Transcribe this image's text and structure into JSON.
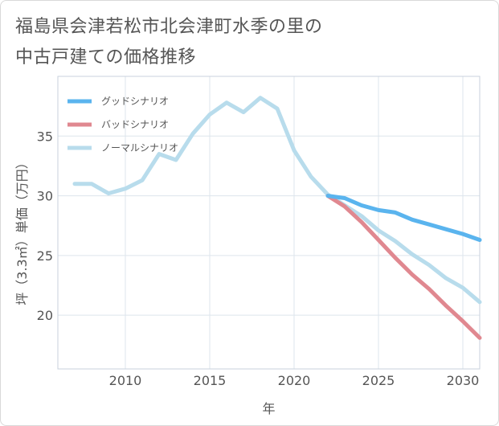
{
  "title_line1": "福島県会津若松市北会津町水季の里の",
  "title_line2": "中古戸建ての価格推移",
  "chart_data": {
    "type": "line",
    "xlabel": "年",
    "ylabel": "坪（3.3㎡）単価（万円）",
    "xlim": [
      2006,
      2031
    ],
    "ylim": [
      15.5,
      40
    ],
    "x_ticks": [
      2010,
      2015,
      2020,
      2025,
      2030
    ],
    "y_ticks": [
      20,
      25,
      30,
      35
    ],
    "grid": true,
    "legend_position": "top-left",
    "series": [
      {
        "name": "グッドシナリオ",
        "color": "#5ab4ee",
        "x": [
          2022,
          2023,
          2024,
          2025,
          2026,
          2027,
          2028,
          2029,
          2030,
          2031
        ],
        "y": [
          30.0,
          29.8,
          29.2,
          28.8,
          28.6,
          28.0,
          27.6,
          27.2,
          26.8,
          26.3
        ]
      },
      {
        "name": "バッドシナリオ",
        "color": "#e08890",
        "x": [
          2022,
          2023,
          2024,
          2025,
          2026,
          2027,
          2028,
          2029,
          2030,
          2031
        ],
        "y": [
          30.0,
          29.1,
          27.8,
          26.3,
          24.8,
          23.4,
          22.2,
          20.8,
          19.5,
          18.1
        ]
      },
      {
        "name": "ノーマルシナリオ",
        "color": "#b8dcec",
        "x": [
          2007,
          2008,
          2009,
          2010,
          2011,
          2012,
          2013,
          2014,
          2015,
          2016,
          2017,
          2018,
          2019,
          2020,
          2021,
          2022,
          2023,
          2024,
          2025,
          2026,
          2027,
          2028,
          2029,
          2030,
          2031
        ],
        "y": [
          31.0,
          31.0,
          30.2,
          30.6,
          31.3,
          33.5,
          33.0,
          35.2,
          36.8,
          37.8,
          37.0,
          38.2,
          37.3,
          33.8,
          31.6,
          30.1,
          29.2,
          28.3,
          27.1,
          26.2,
          25.1,
          24.2,
          23.1,
          22.3,
          21.1
        ]
      }
    ]
  }
}
